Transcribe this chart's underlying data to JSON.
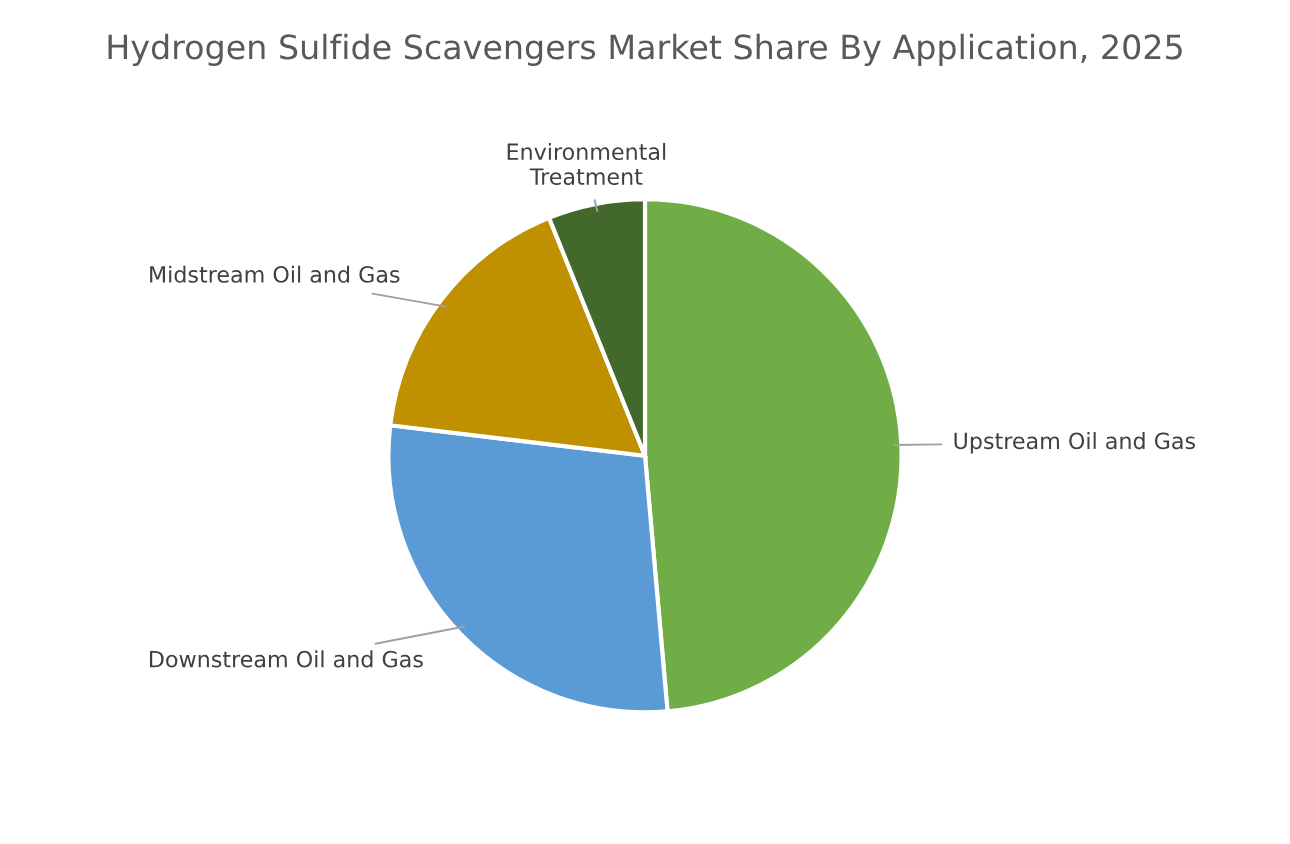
{
  "chart_data": {
    "type": "pie",
    "title": "Hydrogen Sulfide Scavengers Market Share By Application, 2025",
    "categories": [
      "Upstream Oil and Gas",
      "Downstream Oil and Gas",
      "Midstream Oil and Gas",
      "Environmental\nTreatment"
    ],
    "values": [
      48.6,
      28.3,
      17.0,
      6.1
    ],
    "colors": [
      "#70ad47",
      "#5b9bd5",
      "#bf9000",
      "#43682b"
    ],
    "legend": false
  }
}
